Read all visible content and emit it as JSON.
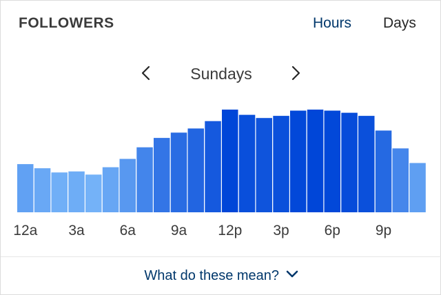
{
  "header": {
    "title": "FOLLOWERS",
    "tabs": [
      {
        "label": "Hours",
        "active": true
      },
      {
        "label": "Days",
        "active": false
      }
    ]
  },
  "navigator": {
    "period_label": "Sundays",
    "prev_icon": "chevron-left-icon",
    "next_icon": "chevron-right-icon"
  },
  "chart_data": {
    "type": "bar",
    "categories": [
      "12a",
      "1a",
      "2a",
      "3a",
      "4a",
      "5a",
      "6a",
      "7a",
      "8a",
      "9a",
      "10a",
      "11a",
      "12p",
      "1p",
      "2p",
      "3p",
      "4p",
      "5p",
      "6p",
      "7p",
      "8p",
      "9p",
      "10p",
      "11p"
    ],
    "tick_labels": [
      {
        "index": 0,
        "label": "12a"
      },
      {
        "index": 3,
        "label": "3a"
      },
      {
        "index": 6,
        "label": "6a"
      },
      {
        "index": 9,
        "label": "9a"
      },
      {
        "index": 12,
        "label": "12p"
      },
      {
        "index": 15,
        "label": "3p"
      },
      {
        "index": 18,
        "label": "6p"
      },
      {
        "index": 21,
        "label": "9p"
      }
    ],
    "values": [
      46,
      42,
      38,
      39,
      36,
      43,
      51,
      62,
      71,
      76,
      80,
      87,
      98,
      93,
      90,
      92,
      97,
      98,
      97,
      95,
      92,
      78,
      61,
      47
    ],
    "colors": {
      "low": "#74b2f8",
      "high": "#0046d8"
    },
    "grid": false,
    "legend": "none"
  },
  "footer": {
    "help_label": "What do these mean?",
    "help_icon": "chevron-down-icon",
    "link_color": "#00376b"
  }
}
